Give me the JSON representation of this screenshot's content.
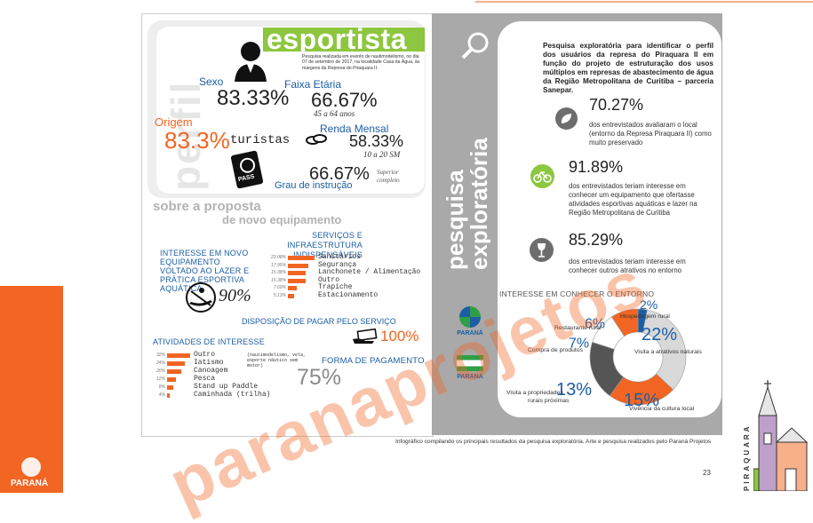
{
  "left": {
    "title": "esportista",
    "intro": "Pesquisa realizada em evento de nautimodelismo, no dia 07 de setembro de 2017, na localidade Casa da Água, às margens da Represa do Piraquara II.",
    "perfil_label": "perfil",
    "sexo": {
      "label": "Sexo",
      "value": "83.33%"
    },
    "faixa": {
      "label": "Faixa Etária",
      "value": "66.67%",
      "note": "45 a 64 anos"
    },
    "origem": {
      "label": "Origem",
      "value": "83.3%",
      "word": "turistas"
    },
    "renda": {
      "label": "Renda Mensal",
      "value": "58.33%",
      "note": "10 a 20 SM"
    },
    "grau": {
      "value": "66.67%",
      "label": "Grau de instrução",
      "note": "Superior completo"
    },
    "pass_label": "PASS",
    "proposta_title": "sobre a proposta",
    "proposta_sub": "de novo equipamento",
    "servicos_title": "SERVIÇOS E INFRAESTRUTURA INDISPENSÁVEIS",
    "interesse_title": "INTERESSE EM NOVO EQUIPAMENTO VOLTADO AO LAZER E PRÁTICA ESPORTIVA AQUÁTICA",
    "interesse_value": "90%",
    "servicos": [
      {
        "pct": "23.08%",
        "label": "Sanitários",
        "frac": 1.0
      },
      {
        "pct": "17.95%",
        "label": "Segurança",
        "frac": 0.78
      },
      {
        "pct": "15.38%",
        "label": "Lanchonete / Alimentação",
        "frac": 0.67
      },
      {
        "pct": "15.38%",
        "label": "Outro",
        "frac": 0.67
      },
      {
        "pct": "7.69%",
        "label": "Trapiche",
        "frac": 0.33
      },
      {
        "pct": "5.13%",
        "label": "Estacionamento",
        "frac": 0.22
      }
    ],
    "pagar_title": "DISPOSIÇÃO DE PAGAR PELO SERVIÇO",
    "pagar_value": "100%",
    "atividades_title": "ATIVIDADES DE INTERESSE",
    "atividades": [
      {
        "pct": "32%",
        "label": "Outro",
        "frac": 1.0
      },
      {
        "pct": "24%",
        "label": "Iatismo",
        "frac": 0.75
      },
      {
        "pct": "20%",
        "label": "Canoagem",
        "frac": 0.63
      },
      {
        "pct": "12%",
        "label": "Pesca",
        "frac": 0.38
      },
      {
        "pct": "8%",
        "label": "Stand up Paddle",
        "frac": 0.25
      },
      {
        "pct": "4%",
        "label": "Caminhada (trilha)",
        "frac": 0.13
      }
    ],
    "outro_note": "(nautimodelismo, vela, esporte náutico sem motor)",
    "forma_title": "FORMA DE PAGAMENTO",
    "forma_value": "75%"
  },
  "mid": {
    "vertical_title": "pesquisa exploratória",
    "logo1": "PARANÁ",
    "logo2": "PARANÁ"
  },
  "right": {
    "heading": "Pesquisa exploratória para identificar o perfil dos usuários da represa do Piraquara II em função do projeto de estruturação dos usos múltiplos em represas de abastecimento de água da Região Metropolitana de Curitiba – parceria Sanepar.",
    "stat1": {
      "value": "70.27%",
      "text": "dos entrevistados avaliaram o local (entorno da Represa Piraquara II) como muito preservado"
    },
    "stat2": {
      "value": "91.89%",
      "text": "dos entrevistados teriam interesse em conhecer um equipamento que ofertasse atividades esportivas aquáticas e lazer na Região Metropolitana de Curitiba"
    },
    "stat3": {
      "value": "85.29%",
      "text": "dos entrevistados teriam interesse em conhecer outros atrativos no entorno"
    },
    "entorno_title": "INTERESSE EM CONHECER O ENTORNO"
  },
  "chart_data": {
    "type": "pie",
    "title": "INTERESSE EM CONHECER O ENTORNO",
    "categories": [
      "Visita a atrativos naturais",
      "Vivência da cultura local",
      "Visita a propriedades rurais próximas",
      "Compra de produtos",
      "Restaurante rural",
      "Hospedagem rural"
    ],
    "values": [
      22,
      15,
      13,
      7,
      6,
      2
    ],
    "labels": [
      "22%",
      "15%",
      "13%",
      "7%",
      "6%",
      "2%"
    ],
    "colors": [
      "#d9d9d9",
      "#f26522",
      "#555555",
      "#ffffff",
      "#f26522",
      "#1b5ea6"
    ]
  },
  "footer": {
    "caption": "Infográfico compilando os principais resultados da pesquisa exploratória. Arte e pesquisa realizados pelo Paraná Projetos",
    "page_number": "23",
    "brand": "PARANÁ",
    "side_word": "PIRAQUARA"
  },
  "watermark": "paranaprojetos",
  "colors": {
    "accent": "#f26522",
    "blue": "#1b5ea6",
    "gray": "#a9a9a9"
  }
}
